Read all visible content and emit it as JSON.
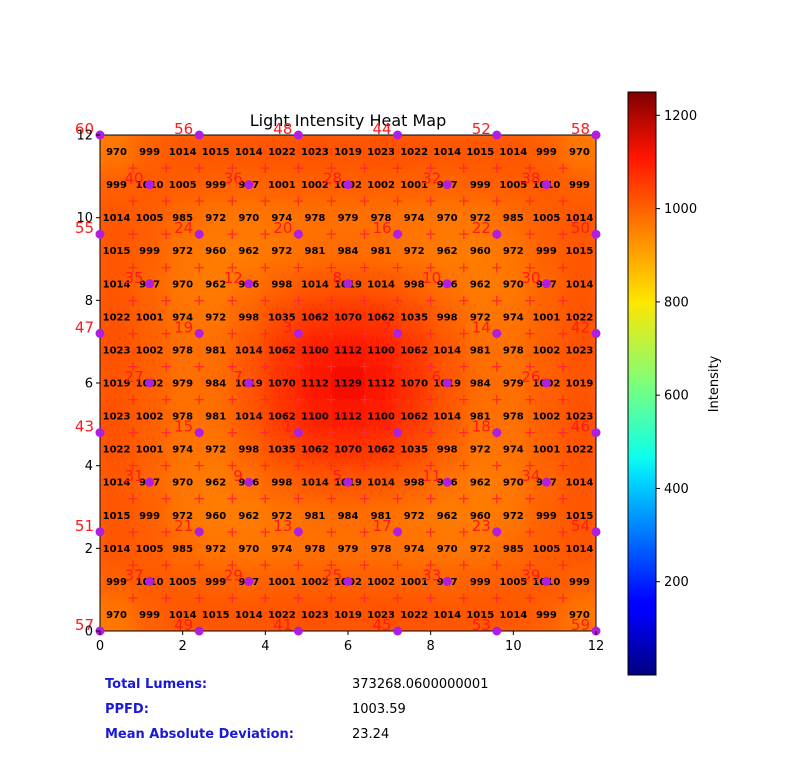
{
  "chart_data": {
    "type": "heatmap",
    "title": "Light Intensity Heat Map",
    "xlabel": "",
    "ylabel": "",
    "xlim": [
      0,
      12
    ],
    "ylim": [
      0,
      12
    ],
    "x_ticks": [
      "0",
      "2",
      "4",
      "6",
      "8",
      "10",
      "12"
    ],
    "y_ticks": [
      "0",
      "2",
      "4",
      "6",
      "8",
      "10",
      "12"
    ],
    "colormap": "jet",
    "colorbar": {
      "label": "Intensity",
      "range": [
        0,
        1250
      ],
      "ticks": [
        "200",
        "400",
        "600",
        "800",
        "1000",
        "1200"
      ]
    },
    "grid_rows_top_to_bottom": [
      [
        970,
        999,
        1014,
        1015,
        1014,
        1022,
        1023,
        1019,
        1023,
        1022,
        1014,
        1015,
        1014,
        999,
        970
      ],
      [
        999,
        1010,
        1005,
        999,
        997,
        1001,
        1002,
        1002,
        1002,
        1001,
        997,
        999,
        1005,
        1010,
        999
      ],
      [
        1014,
        1005,
        985,
        972,
        970,
        974,
        978,
        979,
        978,
        974,
        970,
        972,
        985,
        1005,
        1014
      ],
      [
        1015,
        999,
        972,
        960,
        962,
        972,
        981,
        984,
        981,
        972,
        962,
        960,
        972,
        999,
        1015
      ],
      [
        1014,
        997,
        970,
        962,
        976,
        998,
        1014,
        1019,
        1014,
        998,
        976,
        962,
        970,
        997,
        1014
      ],
      [
        1022,
        1001,
        974,
        972,
        998,
        1035,
        1062,
        1070,
        1062,
        1035,
        998,
        972,
        974,
        1001,
        1022
      ],
      [
        1023,
        1002,
        978,
        981,
        1014,
        1062,
        1100,
        1112,
        1100,
        1062,
        1014,
        981,
        978,
        1002,
        1023
      ],
      [
        1019,
        1002,
        979,
        984,
        1019,
        1070,
        1112,
        1129,
        1112,
        1070,
        1019,
        984,
        979,
        1002,
        1019
      ],
      [
        1023,
        1002,
        978,
        981,
        1014,
        1062,
        1100,
        1112,
        1100,
        1062,
        1014,
        981,
        978,
        1002,
        1023
      ],
      [
        1022,
        1001,
        974,
        972,
        998,
        1035,
        1062,
        1070,
        1062,
        1035,
        998,
        972,
        974,
        1001,
        1022
      ],
      [
        1014,
        997,
        970,
        962,
        976,
        998,
        1014,
        1019,
        1014,
        998,
        976,
        962,
        970,
        997,
        1014
      ],
      [
        1015,
        999,
        972,
        960,
        962,
        972,
        981,
        984,
        981,
        972,
        962,
        960,
        972,
        999,
        1015
      ],
      [
        1014,
        1005,
        985,
        972,
        970,
        974,
        978,
        979,
        978,
        974,
        970,
        972,
        985,
        1005,
        1014
      ],
      [
        999,
        1010,
        1005,
        999,
        997,
        1001,
        1002,
        1002,
        1002,
        1001,
        997,
        999,
        1005,
        1010,
        999
      ],
      [
        970,
        999,
        1014,
        1015,
        1014,
        1022,
        1023,
        1019,
        1023,
        1022,
        1014,
        1015,
        1014,
        999,
        970
      ]
    ],
    "emitters": [
      {
        "label": "1",
        "x": 4.8,
        "y": 4.8
      },
      {
        "label": "2",
        "x": 7.2,
        "y": 7.2
      },
      {
        "label": "3",
        "x": 4.8,
        "y": 7.2
      },
      {
        "label": "4",
        "x": 7.2,
        "y": 4.8
      },
      {
        "label": "5",
        "x": 6.0,
        "y": 3.6
      },
      {
        "label": "6",
        "x": 8.4,
        "y": 6.0
      },
      {
        "label": "7",
        "x": 3.6,
        "y": 6.0
      },
      {
        "label": "8",
        "x": 6.0,
        "y": 8.4
      },
      {
        "label": "9",
        "x": 3.6,
        "y": 3.6
      },
      {
        "label": "10",
        "x": 8.4,
        "y": 8.4
      },
      {
        "label": "11",
        "x": 8.4,
        "y": 3.6
      },
      {
        "label": "12",
        "x": 3.6,
        "y": 8.4
      },
      {
        "label": "13",
        "x": 4.8,
        "y": 2.4
      },
      {
        "label": "14",
        "x": 9.6,
        "y": 7.2
      },
      {
        "label": "15",
        "x": 2.4,
        "y": 4.8
      },
      {
        "label": "16",
        "x": 7.2,
        "y": 9.6
      },
      {
        "label": "17",
        "x": 7.2,
        "y": 2.4
      },
      {
        "label": "18",
        "x": 9.6,
        "y": 4.8
      },
      {
        "label": "19",
        "x": 2.4,
        "y": 7.2
      },
      {
        "label": "20",
        "x": 4.8,
        "y": 9.6
      },
      {
        "label": "21",
        "x": 2.4,
        "y": 2.4
      },
      {
        "label": "22",
        "x": 9.6,
        "y": 9.6
      },
      {
        "label": "23",
        "x": 9.6,
        "y": 2.4
      },
      {
        "label": "24",
        "x": 2.4,
        "y": 9.6
      },
      {
        "label": "25",
        "x": 6.0,
        "y": 1.2
      },
      {
        "label": "26",
        "x": 10.8,
        "y": 6.0
      },
      {
        "label": "27",
        "x": 1.2,
        "y": 6.0
      },
      {
        "label": "28",
        "x": 6.0,
        "y": 10.8
      },
      {
        "label": "29",
        "x": 3.6,
        "y": 1.2
      },
      {
        "label": "30",
        "x": 10.8,
        "y": 8.4
      },
      {
        "label": "31",
        "x": 1.2,
        "y": 3.6
      },
      {
        "label": "32",
        "x": 8.4,
        "y": 10.8
      },
      {
        "label": "33",
        "x": 8.4,
        "y": 1.2
      },
      {
        "label": "34",
        "x": 10.8,
        "y": 3.6
      },
      {
        "label": "35",
        "x": 1.2,
        "y": 8.4
      },
      {
        "label": "36",
        "x": 3.6,
        "y": 10.8
      },
      {
        "label": "37",
        "x": 1.2,
        "y": 1.2
      },
      {
        "label": "38",
        "x": 10.8,
        "y": 10.8
      },
      {
        "label": "39",
        "x": 10.8,
        "y": 1.2
      },
      {
        "label": "40",
        "x": 1.2,
        "y": 10.8
      },
      {
        "label": "41",
        "x": 4.8,
        "y": 0.0
      },
      {
        "label": "42",
        "x": 12.0,
        "y": 7.2
      },
      {
        "label": "43",
        "x": 0.0,
        "y": 4.8
      },
      {
        "label": "44",
        "x": 7.2,
        "y": 12.0
      },
      {
        "label": "45",
        "x": 7.2,
        "y": 0.0
      },
      {
        "label": "46",
        "x": 12.0,
        "y": 4.8
      },
      {
        "label": "47",
        "x": 0.0,
        "y": 7.2
      },
      {
        "label": "48",
        "x": 4.8,
        "y": 12.0
      },
      {
        "label": "49",
        "x": 2.4,
        "y": 0.0
      },
      {
        "label": "50",
        "x": 12.0,
        "y": 9.6
      },
      {
        "label": "51",
        "x": 0.0,
        "y": 2.4
      },
      {
        "label": "52",
        "x": 9.6,
        "y": 12.0
      },
      {
        "label": "53",
        "x": 9.6,
        "y": 0.0
      },
      {
        "label": "54",
        "x": 12.0,
        "y": 2.4
      },
      {
        "label": "55",
        "x": 0.0,
        "y": 9.6
      },
      {
        "label": "56",
        "x": 2.4,
        "y": 12.0
      },
      {
        "label": "57",
        "x": 0.0,
        "y": 0.0
      },
      {
        "label": "58",
        "x": 12.0,
        "y": 12.0
      },
      {
        "label": "59",
        "x": 12.0,
        "y": 0.0
      },
      {
        "label": "60",
        "x": 0.0,
        "y": 12.0
      }
    ],
    "measurement_marker": "+",
    "colors": {
      "emitter_marker": "#b01ee0",
      "emitter_label": "#ff1a1a",
      "plus_marker": "#ff2a2a",
      "stat_label": "#1a1ad6"
    }
  },
  "stats": {
    "total_lumens_label": "Total Lumens:",
    "total_lumens_value": "373268.0600000001",
    "ppfd_label": "PPFD:",
    "ppfd_value": "1003.59",
    "mad_label": "Mean Absolute Deviation:",
    "mad_value": "23.24"
  }
}
